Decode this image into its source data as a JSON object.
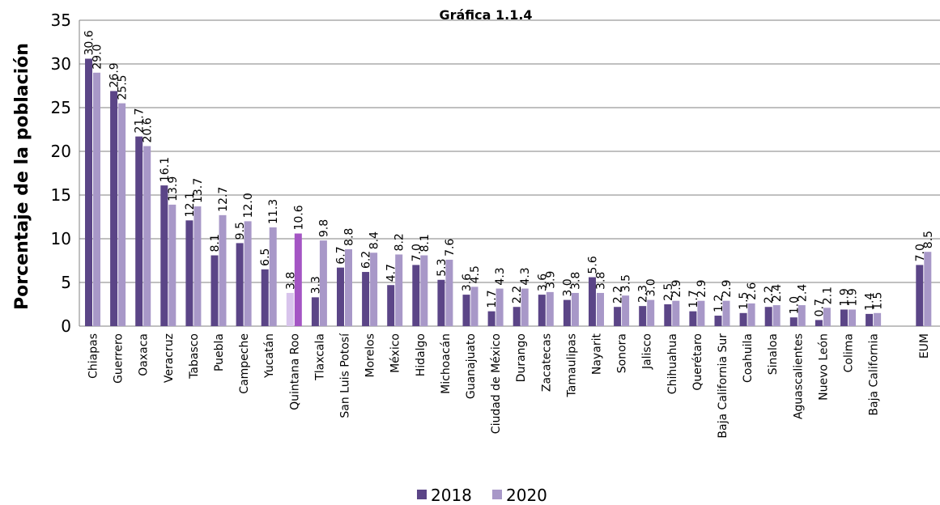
{
  "chart_data": {
    "type": "bar",
    "title": "Gráfica 1.1.4",
    "ylabel": "Porcentaje de la población",
    "xlabel": "",
    "ylim": [
      0,
      35
    ],
    "yticks": [
      0,
      5,
      10,
      15,
      20,
      25,
      30,
      35
    ],
    "grid": true,
    "legend_position": "bottom",
    "categories": [
      "Chiapas",
      "Guerrero",
      "Oaxaca",
      "Veracruz",
      "Tabasco",
      "Puebla",
      "Campeche",
      "Yucatán",
      "Quintana Roo",
      "Tlaxcala",
      "San Luis Potosí",
      "Morelos",
      "México",
      "Hidalgo",
      "Michoacán",
      "Guanajuato",
      "Ciudad de México",
      "Durango",
      "Zacatecas",
      "Tamaulipas",
      "Nayarit",
      "Sonora",
      "Jalisco",
      "Chihuahua",
      "Querétaro",
      "Baja California Sur",
      "Coahuila",
      "Sinaloa",
      "Aguascalientes",
      "Nuevo León",
      "Colima",
      "Baja California",
      "EUM"
    ],
    "series": [
      {
        "name": "2018",
        "color": "#5b4587",
        "values": [
          30.6,
          26.9,
          21.7,
          16.1,
          12.1,
          8.1,
          9.5,
          6.5,
          3.8,
          3.3,
          6.7,
          6.2,
          4.7,
          7.0,
          5.3,
          3.6,
          1.7,
          2.2,
          3.6,
          3.0,
          5.6,
          2.2,
          2.3,
          2.5,
          1.7,
          1.2,
          1.5,
          2.2,
          1.0,
          0.7,
          1.9,
          1.4,
          7.0
        ],
        "labels": [
          "30.6",
          "26.9",
          "21.7",
          "16.1",
          "12.1",
          "8.1",
          "9.5",
          "6.5",
          "3.8",
          "3.3",
          "6.7",
          "6.2",
          "4.7",
          "7.0",
          "5.3",
          "3.6",
          "1.7",
          "2.2",
          "3.6",
          "3.0",
          "5.6",
          "2.2",
          "2.3",
          "2.5",
          "1.7",
          "1.2",
          "1.5",
          "2.2",
          "1.0",
          "0.7",
          "1.9",
          "1.4",
          "7.0"
        ]
      },
      {
        "name": "2020",
        "color": "#a898c8",
        "values": [
          29.0,
          25.5,
          20.6,
          13.9,
          13.7,
          12.7,
          12.0,
          11.3,
          10.6,
          9.8,
          8.8,
          8.4,
          8.2,
          8.1,
          7.6,
          4.5,
          4.3,
          4.3,
          3.9,
          3.8,
          3.8,
          3.5,
          3.0,
          2.9,
          2.9,
          2.9,
          2.6,
          2.4,
          2.4,
          2.1,
          1.9,
          1.5,
          8.5
        ],
        "labels": [
          "29.0",
          "25.5",
          "20.6",
          "13.9",
          "13.7",
          "12.7",
          "12.0",
          "11.3",
          "10.6",
          "9.8",
          "8.8",
          "8.4",
          "8.2",
          "8.1",
          "7.6",
          "4.5",
          "4.3",
          "4.3",
          "3.9",
          "3.8",
          "3.8",
          "3.5",
          "3.0",
          "2.9",
          "2.9",
          "2.9",
          "2.6",
          "2.4",
          "2.4",
          "2.1",
          "1.9",
          "1.5",
          "8.5"
        ]
      }
    ],
    "highlight": {
      "category": "Quintana Roo",
      "colors": {
        "2018": "#d8c4ec",
        "2020": "#a455c4"
      }
    }
  }
}
